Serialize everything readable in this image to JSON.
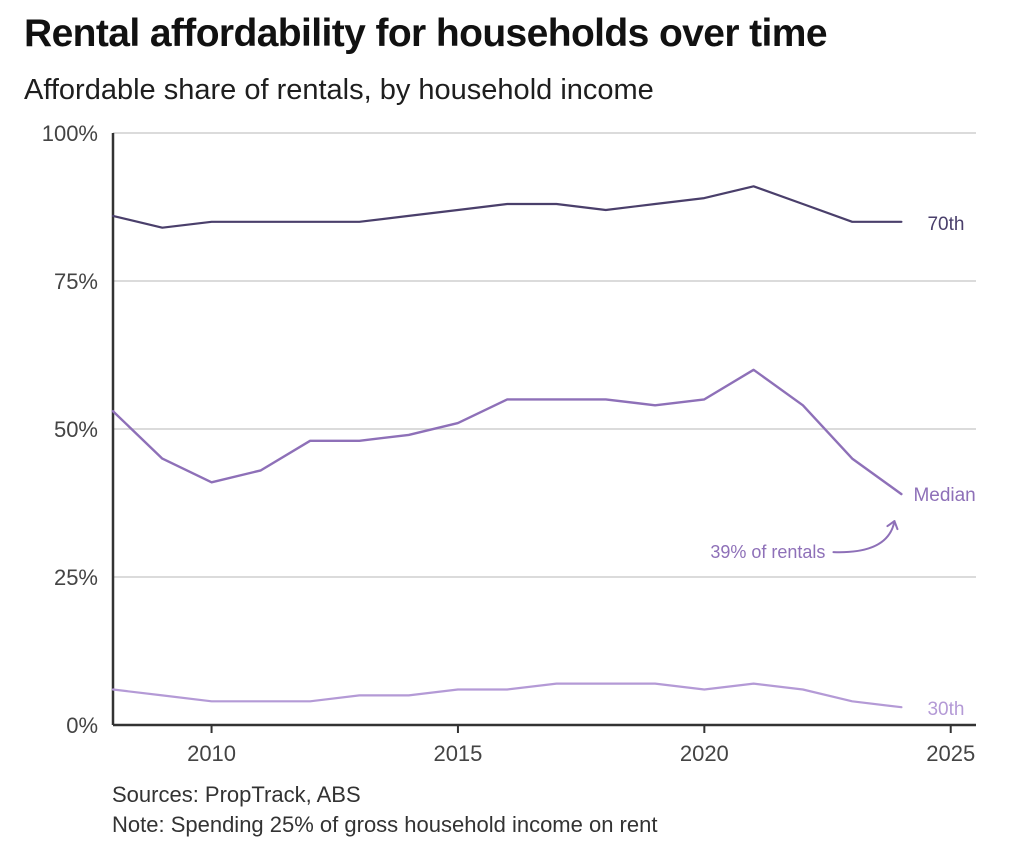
{
  "title": "Rental affordability for households over time",
  "subtitle": "Affordable share of rentals, by household income",
  "sources": "Sources: PropTrack, ABS",
  "note": "Note: Spending 25% of gross household income on rent",
  "colors": {
    "p70": "#4a3f6b",
    "median": "#8e70b8",
    "p30": "#b49ad6",
    "grid": "#cfcfcf",
    "axis": "#333333"
  },
  "chart_data": {
    "type": "line",
    "x": [
      2008,
      2009,
      2010,
      2011,
      2012,
      2013,
      2014,
      2015,
      2016,
      2017,
      2018,
      2019,
      2020,
      2021,
      2022,
      2023,
      2024
    ],
    "xlim": [
      2008,
      2026
    ],
    "ylim": [
      0,
      100
    ],
    "x_ticks": [
      {
        "value": 2010,
        "label": "2010"
      },
      {
        "value": 2015,
        "label": "2015"
      },
      {
        "value": 2020,
        "label": "2020"
      },
      {
        "value": 2025,
        "label": "2025"
      }
    ],
    "y_ticks": [
      {
        "value": 0,
        "label": "0%"
      },
      {
        "value": 25,
        "label": "25%"
      },
      {
        "value": 50,
        "label": "50%"
      },
      {
        "value": 75,
        "label": "75%"
      },
      {
        "value": 100,
        "label": "100%"
      }
    ],
    "grid": "horizontal",
    "series": [
      {
        "key": "p70",
        "name": "70th",
        "values": [
          86,
          84,
          85,
          85,
          85,
          85,
          86,
          87,
          88,
          88,
          87,
          88,
          89,
          91,
          88,
          85,
          85
        ]
      },
      {
        "key": "median",
        "name": "Median",
        "values": [
          53,
          45,
          41,
          43,
          48,
          48,
          49,
          51,
          55,
          55,
          55,
          54,
          55,
          60,
          54,
          45,
          39
        ]
      },
      {
        "key": "p30",
        "name": "30th",
        "values": [
          6,
          5,
          4,
          4,
          4,
          5,
          5,
          6,
          6,
          7,
          7,
          7,
          6,
          7,
          6,
          4,
          3
        ]
      }
    ],
    "annotations": [
      {
        "text": "39% of rentals",
        "series": "median",
        "x": 2024,
        "y": 39
      }
    ]
  }
}
